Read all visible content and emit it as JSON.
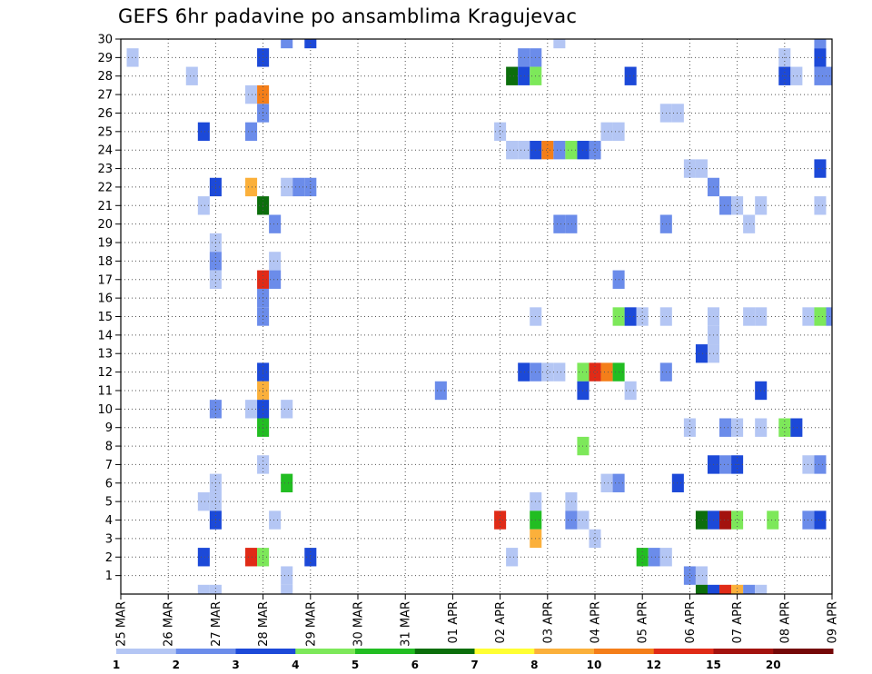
{
  "title": "GEFS 6hr padavine po ansamblima Kragujevac",
  "chart_data": {
    "type": "heatmap",
    "title": "GEFS 6hr padavine po ansamblima Kragujevac",
    "x_tick_labels": [
      "25 MAR",
      "26 MAR",
      "27 MAR",
      "28 MAR",
      "29 MAR",
      "30 MAR",
      "31 MAR",
      "01 APR",
      "02 APR",
      "03 APR",
      "04 APR",
      "05 APR",
      "06 APR",
      "07 APR",
      "08 APR",
      "09 APR"
    ],
    "y_tick_labels": [
      "1",
      "2",
      "3",
      "4",
      "5",
      "6",
      "7",
      "8",
      "9",
      "10",
      "11",
      "12",
      "13",
      "14",
      "15",
      "16",
      "17",
      "18",
      "19",
      "20",
      "21",
      "22",
      "23",
      "24",
      "25",
      "26",
      "27",
      "28",
      "29",
      "30"
    ],
    "x_time_steps_per_day": 4,
    "x_range_steps": [
      0,
      60
    ],
    "y_range_members": [
      0,
      30
    ],
    "grid": true,
    "colorbar": {
      "boundaries": [
        "1",
        "2",
        "3",
        "4",
        "5",
        "6",
        "7",
        "8",
        "10",
        "12",
        "15",
        "20"
      ],
      "colors": [
        "#b4c6f4",
        "#6b8cea",
        "#1c49d8",
        "#7de85a",
        "#22bd22",
        "#0c6e0c",
        "#ffff33",
        "#fbb03b",
        "#f47e19",
        "#e02b17",
        "#a3120e",
        "#740808"
      ]
    },
    "cells": [
      {
        "t": 14,
        "m": 30,
        "c": 1
      },
      {
        "t": 16,
        "m": 30,
        "c": 2
      },
      {
        "t": 37,
        "m": 30,
        "c": 0
      },
      {
        "t": 59,
        "m": 30,
        "c": 1
      },
      {
        "t": 1,
        "m": 29,
        "c": 0
      },
      {
        "t": 12,
        "m": 29,
        "c": 2
      },
      {
        "t": 34,
        "m": 29,
        "c": 1
      },
      {
        "t": 35,
        "m": 29,
        "c": 1
      },
      {
        "t": 56,
        "m": 29,
        "c": 0
      },
      {
        "t": 59,
        "m": 29,
        "c": 2
      },
      {
        "t": 6,
        "m": 28,
        "c": 0
      },
      {
        "t": 33,
        "m": 28,
        "c": 5
      },
      {
        "t": 34,
        "m": 28,
        "c": 2
      },
      {
        "t": 35,
        "m": 28,
        "c": 3
      },
      {
        "t": 43,
        "m": 28,
        "c": 2
      },
      {
        "t": 56,
        "m": 28,
        "c": 2
      },
      {
        "t": 57,
        "m": 28,
        "c": 0
      },
      {
        "t": 59,
        "m": 28,
        "c": 1
      },
      {
        "t": 60,
        "m": 28,
        "c": 1
      },
      {
        "t": 11,
        "m": 27,
        "c": 0
      },
      {
        "t": 12,
        "m": 27,
        "c": 8
      },
      {
        "t": 12,
        "m": 26,
        "c": 1
      },
      {
        "t": 46,
        "m": 26,
        "c": 0
      },
      {
        "t": 47,
        "m": 26,
        "c": 0
      },
      {
        "t": 7,
        "m": 25,
        "c": 2
      },
      {
        "t": 11,
        "m": 25,
        "c": 1
      },
      {
        "t": 32,
        "m": 25,
        "c": 0
      },
      {
        "t": 41,
        "m": 25,
        "c": 0
      },
      {
        "t": 42,
        "m": 25,
        "c": 0
      },
      {
        "t": 33,
        "m": 24,
        "c": 0
      },
      {
        "t": 34,
        "m": 24,
        "c": 0
      },
      {
        "t": 35,
        "m": 24,
        "c": 2
      },
      {
        "t": 36,
        "m": 24,
        "c": 8
      },
      {
        "t": 37,
        "m": 24,
        "c": 1
      },
      {
        "t": 38,
        "m": 24,
        "c": 3
      },
      {
        "t": 39,
        "m": 24,
        "c": 2
      },
      {
        "t": 40,
        "m": 24,
        "c": 1
      },
      {
        "t": 48,
        "m": 23,
        "c": 0
      },
      {
        "t": 49,
        "m": 23,
        "c": 0
      },
      {
        "t": 59,
        "m": 23,
        "c": 2
      },
      {
        "t": 8,
        "m": 22,
        "c": 2
      },
      {
        "t": 11,
        "m": 22,
        "c": 7
      },
      {
        "t": 14,
        "m": 22,
        "c": 0
      },
      {
        "t": 15,
        "m": 22,
        "c": 1
      },
      {
        "t": 16,
        "m": 22,
        "c": 1
      },
      {
        "t": 50,
        "m": 22,
        "c": 1
      },
      {
        "t": 7,
        "m": 21,
        "c": 0
      },
      {
        "t": 12,
        "m": 21,
        "c": 5
      },
      {
        "t": 51,
        "m": 21,
        "c": 1
      },
      {
        "t": 52,
        "m": 21,
        "c": 0
      },
      {
        "t": 54,
        "m": 21,
        "c": 0
      },
      {
        "t": 59,
        "m": 21,
        "c": 0
      },
      {
        "t": 13,
        "m": 20,
        "c": 1
      },
      {
        "t": 37,
        "m": 20,
        "c": 1
      },
      {
        "t": 38,
        "m": 20,
        "c": 1
      },
      {
        "t": 46,
        "m": 20,
        "c": 1
      },
      {
        "t": 53,
        "m": 20,
        "c": 0
      },
      {
        "t": 8,
        "m": 19,
        "c": 0
      },
      {
        "t": 8,
        "m": 18,
        "c": 1
      },
      {
        "t": 13,
        "m": 18,
        "c": 0
      },
      {
        "t": 8,
        "m": 17,
        "c": 0
      },
      {
        "t": 12,
        "m": 17,
        "c": 9
      },
      {
        "t": 13,
        "m": 17,
        "c": 1
      },
      {
        "t": 42,
        "m": 17,
        "c": 1
      },
      {
        "t": 12,
        "m": 16,
        "c": 1
      },
      {
        "t": 12,
        "m": 15,
        "c": 1
      },
      {
        "t": 35,
        "m": 15,
        "c": 0
      },
      {
        "t": 42,
        "m": 15,
        "c": 3
      },
      {
        "t": 43,
        "m": 15,
        "c": 2
      },
      {
        "t": 44,
        "m": 15,
        "c": 0
      },
      {
        "t": 46,
        "m": 15,
        "c": 0
      },
      {
        "t": 50,
        "m": 15,
        "c": 0
      },
      {
        "t": 53,
        "m": 15,
        "c": 0
      },
      {
        "t": 54,
        "m": 15,
        "c": 0
      },
      {
        "t": 58,
        "m": 15,
        "c": 0
      },
      {
        "t": 59,
        "m": 15,
        "c": 3
      },
      {
        "t": 60,
        "m": 15,
        "c": 1
      },
      {
        "t": 50,
        "m": 14,
        "c": 0
      },
      {
        "t": 49,
        "m": 13,
        "c": 2
      },
      {
        "t": 50,
        "m": 13,
        "c": 0
      },
      {
        "t": 12,
        "m": 12,
        "c": 2
      },
      {
        "t": 34,
        "m": 12,
        "c": 2
      },
      {
        "t": 35,
        "m": 12,
        "c": 1
      },
      {
        "t": 36,
        "m": 12,
        "c": 0
      },
      {
        "t": 37,
        "m": 12,
        "c": 0
      },
      {
        "t": 39,
        "m": 12,
        "c": 3
      },
      {
        "t": 40,
        "m": 12,
        "c": 9
      },
      {
        "t": 41,
        "m": 12,
        "c": 8
      },
      {
        "t": 42,
        "m": 12,
        "c": 4
      },
      {
        "t": 46,
        "m": 12,
        "c": 1
      },
      {
        "t": 12,
        "m": 11,
        "c": 7
      },
      {
        "t": 27,
        "m": 11,
        "c": 1
      },
      {
        "t": 39,
        "m": 11,
        "c": 2
      },
      {
        "t": 43,
        "m": 11,
        "c": 0
      },
      {
        "t": 54,
        "m": 11,
        "c": 2
      },
      {
        "t": 8,
        "m": 10,
        "c": 1
      },
      {
        "t": 11,
        "m": 10,
        "c": 0
      },
      {
        "t": 12,
        "m": 10,
        "c": 2
      },
      {
        "t": 14,
        "m": 10,
        "c": 0
      },
      {
        "t": 12,
        "m": 9,
        "c": 4
      },
      {
        "t": 48,
        "m": 9,
        "c": 0
      },
      {
        "t": 51,
        "m": 9,
        "c": 1
      },
      {
        "t": 52,
        "m": 9,
        "c": 0
      },
      {
        "t": 54,
        "m": 9,
        "c": 0
      },
      {
        "t": 56,
        "m": 9,
        "c": 3
      },
      {
        "t": 57,
        "m": 9,
        "c": 2
      },
      {
        "t": 39,
        "m": 8,
        "c": 3
      },
      {
        "t": 12,
        "m": 7,
        "c": 0
      },
      {
        "t": 50,
        "m": 7,
        "c": 2
      },
      {
        "t": 51,
        "m": 7,
        "c": 1
      },
      {
        "t": 52,
        "m": 7,
        "c": 2
      },
      {
        "t": 58,
        "m": 7,
        "c": 0
      },
      {
        "t": 59,
        "m": 7,
        "c": 1
      },
      {
        "t": 8,
        "m": 6,
        "c": 0
      },
      {
        "t": 14,
        "m": 6,
        "c": 4
      },
      {
        "t": 41,
        "m": 6,
        "c": 0
      },
      {
        "t": 42,
        "m": 6,
        "c": 1
      },
      {
        "t": 47,
        "m": 6,
        "c": 2
      },
      {
        "t": 7,
        "m": 5,
        "c": 0
      },
      {
        "t": 8,
        "m": 5,
        "c": 0
      },
      {
        "t": 35,
        "m": 5,
        "c": 0
      },
      {
        "t": 38,
        "m": 5,
        "c": 0
      },
      {
        "t": 8,
        "m": 4,
        "c": 2
      },
      {
        "t": 13,
        "m": 4,
        "c": 0
      },
      {
        "t": 32,
        "m": 4,
        "c": 9
      },
      {
        "t": 35,
        "m": 4,
        "c": 4
      },
      {
        "t": 38,
        "m": 4,
        "c": 1
      },
      {
        "t": 39,
        "m": 4,
        "c": 0
      },
      {
        "t": 49,
        "m": 4,
        "c": 5
      },
      {
        "t": 50,
        "m": 4,
        "c": 2
      },
      {
        "t": 51,
        "m": 4,
        "c": 10
      },
      {
        "t": 52,
        "m": 4,
        "c": 3
      },
      {
        "t": 55,
        "m": 4,
        "c": 3
      },
      {
        "t": 58,
        "m": 4,
        "c": 1
      },
      {
        "t": 59,
        "m": 4,
        "c": 2
      },
      {
        "t": 35,
        "m": 3,
        "c": 7
      },
      {
        "t": 40,
        "m": 3,
        "c": 0
      },
      {
        "t": 7,
        "m": 2,
        "c": 2
      },
      {
        "t": 11,
        "m": 2,
        "c": 9
      },
      {
        "t": 12,
        "m": 2,
        "c": 3
      },
      {
        "t": 16,
        "m": 2,
        "c": 2
      },
      {
        "t": 33,
        "m": 2,
        "c": 0
      },
      {
        "t": 44,
        "m": 2,
        "c": 4
      },
      {
        "t": 45,
        "m": 2,
        "c": 1
      },
      {
        "t": 46,
        "m": 2,
        "c": 0
      },
      {
        "t": 14,
        "m": 1,
        "c": 0
      },
      {
        "t": 48,
        "m": 1,
        "c": 1
      },
      {
        "t": 49,
        "m": 1,
        "c": 0
      },
      {
        "t": 7,
        "m": 0,
        "c": 0
      },
      {
        "t": 8,
        "m": 0,
        "c": 0
      },
      {
        "t": 14,
        "m": 0,
        "c": 0
      },
      {
        "t": 49,
        "m": 0,
        "c": 5
      },
      {
        "t": 50,
        "m": 0,
        "c": 2
      },
      {
        "t": 51,
        "m": 0,
        "c": 9
      },
      {
        "t": 52,
        "m": 0,
        "c": 7
      },
      {
        "t": 53,
        "m": 0,
        "c": 1
      },
      {
        "t": 54,
        "m": 0,
        "c": 0
      }
    ]
  }
}
